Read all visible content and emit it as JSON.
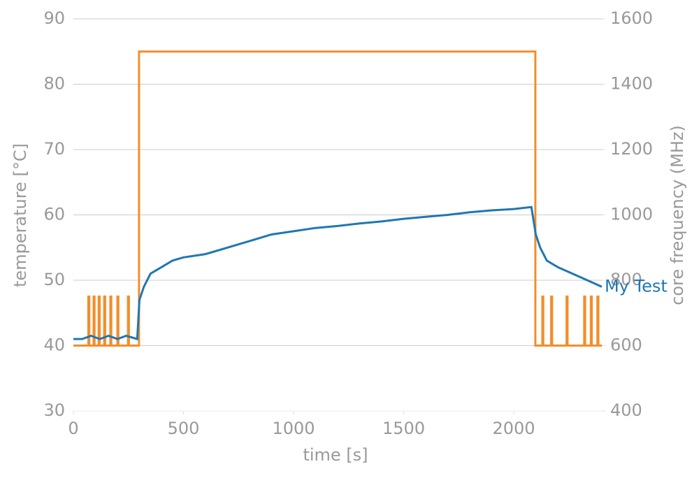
{
  "chart_data": {
    "type": "line",
    "xlabel": "time [s]",
    "ylabel": "temperature [°C]",
    "y2label": "core frequency (MHz)",
    "xlim": [
      0,
      2400
    ],
    "xticks": [
      0,
      500,
      1000,
      1500,
      2000
    ],
    "ylim": [
      30,
      90
    ],
    "yticks": [
      30,
      40,
      50,
      60,
      70,
      80,
      90
    ],
    "y2lim": [
      400,
      1600
    ],
    "y2ticks": [
      400,
      600,
      800,
      1000,
      1200,
      1400,
      1600
    ],
    "grid": true,
    "series": [
      {
        "name": "My Test",
        "color": "#1f77b4",
        "x": [
          0,
          40,
          80,
          120,
          160,
          200,
          240,
          290,
          300,
          320,
          350,
          400,
          450,
          500,
          600,
          700,
          800,
          900,
          1000,
          1100,
          1200,
          1300,
          1400,
          1500,
          1600,
          1700,
          1800,
          1900,
          2000,
          2080,
          2100,
          2120,
          2150,
          2200,
          2300,
          2400
        ],
        "values": [
          41,
          41,
          41.5,
          41,
          41.5,
          41,
          41.5,
          41,
          47,
          49,
          51,
          52,
          53,
          53.5,
          54,
          55,
          56,
          57,
          57.5,
          58,
          58.3,
          58.7,
          59,
          59.4,
          59.7,
          60,
          60.4,
          60.7,
          60.9,
          61.2,
          57,
          55,
          53,
          52,
          50.5,
          49
        ]
      },
      {
        "color": "#f28e2b",
        "axis": "y2",
        "x": [
          0,
          68,
          68,
          72,
          72,
          92,
          92,
          96,
          96,
          115,
          115,
          119,
          119,
          140,
          140,
          144,
          144,
          168,
          168,
          172,
          172,
          200,
          200,
          204,
          204,
          248,
          248,
          252,
          252,
          298,
          298,
          2098,
          2098,
          2130,
          2130,
          2134,
          2134,
          2170,
          2170,
          2174,
          2174,
          2240,
          2240,
          2244,
          2244,
          2320,
          2320,
          2324,
          2324,
          2350,
          2350,
          2354,
          2354,
          2380,
          2380,
          2384,
          2384,
          2400
        ],
        "values": [
          600,
          600,
          750,
          750,
          600,
          600,
          750,
          750,
          600,
          600,
          750,
          750,
          600,
          600,
          750,
          750,
          600,
          600,
          750,
          750,
          600,
          600,
          750,
          750,
          600,
          600,
          750,
          750,
          600,
          600,
          1500,
          1500,
          600,
          600,
          750,
          750,
          600,
          600,
          750,
          750,
          600,
          600,
          750,
          750,
          600,
          600,
          750,
          750,
          600,
          600,
          750,
          750,
          600,
          600,
          750,
          750,
          600,
          600
        ]
      }
    ]
  }
}
